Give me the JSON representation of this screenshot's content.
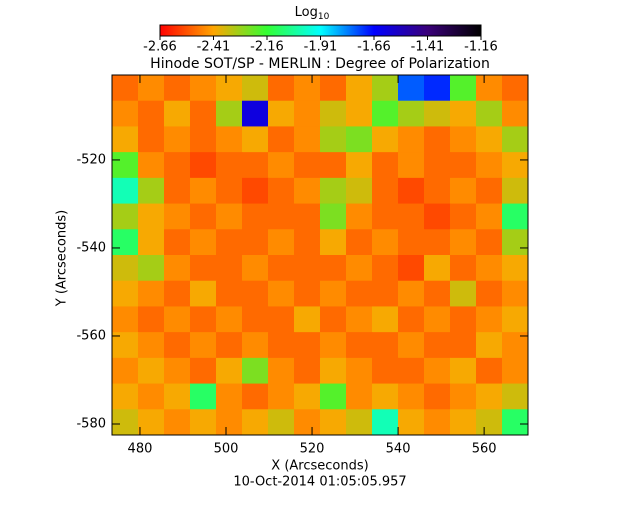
{
  "chart_data": {
    "type": "heatmap",
    "title": "Hinode SOT/SP - MERLIN : Degree of Polarization",
    "x_label": "X (Arcseconds)",
    "y_label": "Y (Arcseconds)",
    "date": "10-Oct-2014 01:05:05.957",
    "colorbar_label": "Log",
    "colorbar_label_sub": "10",
    "clim": [
      -2.66,
      -1.16
    ],
    "cticks": [
      -2.66,
      -2.41,
      -2.16,
      -1.91,
      -1.66,
      -1.41,
      -1.16
    ],
    "colorscale": [
      "#ff0000",
      "#ffa500",
      "#33ff33",
      "#00ffff",
      "#0000ff",
      "#3a007a",
      "#000000"
    ],
    "xlim": [
      473.5,
      570.2
    ],
    "ylim": [
      -582.5,
      -500.7
    ],
    "xticks": [
      480,
      500,
      520,
      540,
      560
    ],
    "yticks": [
      -580,
      -560,
      -540,
      -520
    ],
    "z": [
      [
        -2.5,
        -2.45,
        -2.5,
        -2.45,
        -2.4,
        -2.35,
        -2.5,
        -2.45,
        -2.5,
        -2.4,
        -2.3,
        -1.75,
        -1.7,
        -2.2,
        -2.45,
        -2.5
      ],
      [
        -2.45,
        -2.5,
        -2.4,
        -2.5,
        -2.3,
        -1.6,
        -2.4,
        -2.45,
        -2.35,
        -2.4,
        -2.2,
        -2.3,
        -2.35,
        -2.4,
        -2.3,
        -2.45
      ],
      [
        -2.4,
        -2.5,
        -2.45,
        -2.5,
        -2.45,
        -2.4,
        -2.5,
        -2.45,
        -2.3,
        -2.25,
        -2.4,
        -2.45,
        -2.5,
        -2.45,
        -2.4,
        -2.3
      ],
      [
        -2.2,
        -2.45,
        -2.5,
        -2.55,
        -2.5,
        -2.5,
        -2.45,
        -2.5,
        -2.5,
        -2.4,
        -2.5,
        -2.45,
        -2.5,
        -2.5,
        -2.45,
        -2.4
      ],
      [
        -2.0,
        -2.3,
        -2.5,
        -2.45,
        -2.5,
        -2.55,
        -2.5,
        -2.45,
        -2.3,
        -2.35,
        -2.5,
        -2.55,
        -2.5,
        -2.45,
        -2.5,
        -2.35
      ],
      [
        -2.3,
        -2.4,
        -2.45,
        -2.5,
        -2.45,
        -2.5,
        -2.5,
        -2.5,
        -2.25,
        -2.45,
        -2.5,
        -2.5,
        -2.55,
        -2.5,
        -2.45,
        -2.1
      ],
      [
        -2.1,
        -2.4,
        -2.5,
        -2.45,
        -2.5,
        -2.5,
        -2.45,
        -2.5,
        -2.4,
        -2.5,
        -2.45,
        -2.5,
        -2.5,
        -2.45,
        -2.5,
        -2.3
      ],
      [
        -2.35,
        -2.3,
        -2.45,
        -2.5,
        -2.5,
        -2.45,
        -2.5,
        -2.5,
        -2.5,
        -2.45,
        -2.5,
        -2.55,
        -2.4,
        -2.5,
        -2.45,
        -2.4
      ],
      [
        -2.4,
        -2.45,
        -2.5,
        -2.4,
        -2.5,
        -2.5,
        -2.45,
        -2.5,
        -2.45,
        -2.5,
        -2.5,
        -2.45,
        -2.5,
        -2.35,
        -2.5,
        -2.45
      ],
      [
        -2.45,
        -2.5,
        -2.45,
        -2.5,
        -2.45,
        -2.5,
        -2.5,
        -2.4,
        -2.5,
        -2.45,
        -2.4,
        -2.5,
        -2.45,
        -2.5,
        -2.45,
        -2.4
      ],
      [
        -2.4,
        -2.45,
        -2.5,
        -2.45,
        -2.5,
        -2.45,
        -2.5,
        -2.5,
        -2.45,
        -2.5,
        -2.5,
        -2.45,
        -2.5,
        -2.5,
        -2.4,
        -2.45
      ],
      [
        -2.45,
        -2.4,
        -2.45,
        -2.5,
        -2.4,
        -2.25,
        -2.45,
        -2.5,
        -2.4,
        -2.45,
        -2.5,
        -2.5,
        -2.45,
        -2.4,
        -2.5,
        -2.45
      ],
      [
        -2.4,
        -2.45,
        -2.4,
        -2.1,
        -2.45,
        -2.5,
        -2.45,
        -2.4,
        -2.2,
        -2.45,
        -2.4,
        -2.45,
        -2.5,
        -2.45,
        -2.4,
        -2.35
      ],
      [
        -2.35,
        -2.4,
        -2.45,
        -2.4,
        -2.45,
        -2.4,
        -2.35,
        -2.45,
        -2.4,
        -2.35,
        -2.0,
        -2.4,
        -2.45,
        -2.4,
        -2.35,
        -2.1
      ]
    ]
  }
}
